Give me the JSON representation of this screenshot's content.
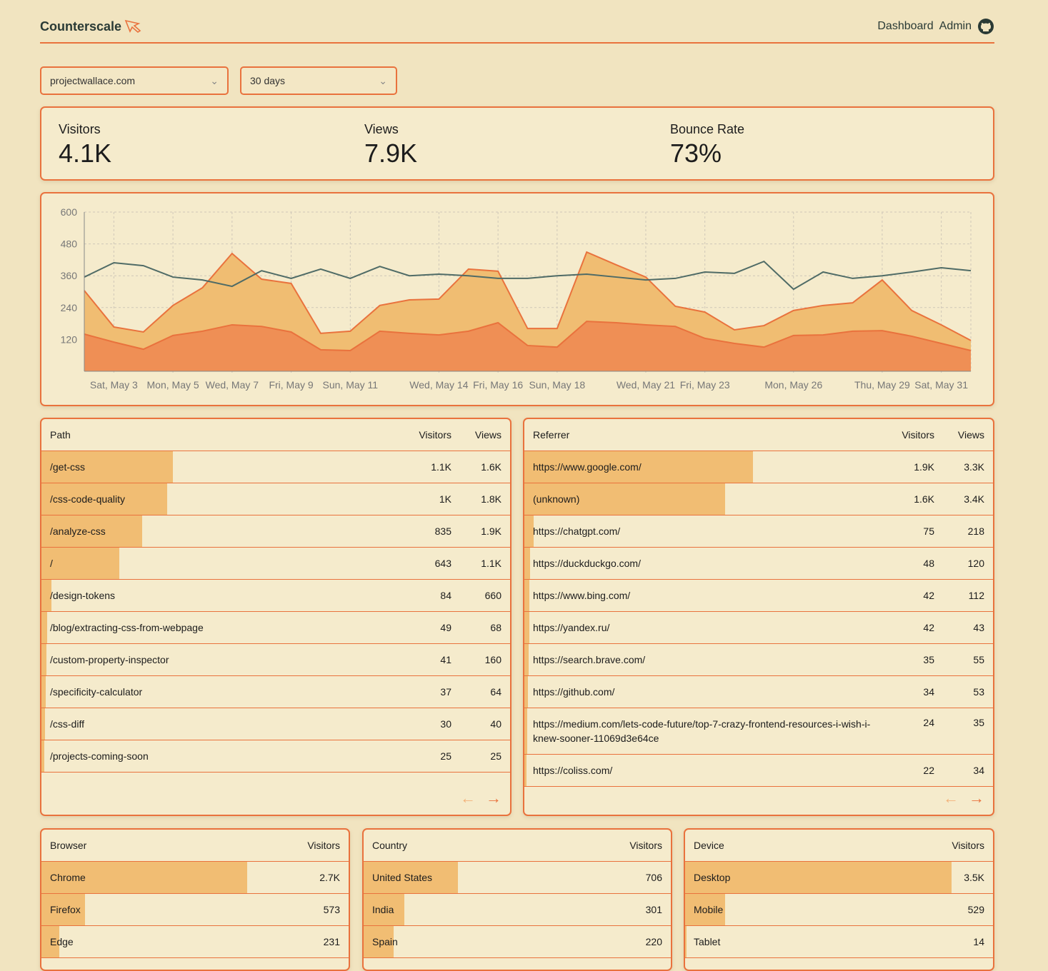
{
  "header": {
    "brand": "Counterscale",
    "nav": [
      "Dashboard",
      "Admin"
    ]
  },
  "filters": {
    "site": "projectwallace.com",
    "range": "30 days"
  },
  "stats": [
    {
      "label": "Visitors",
      "value": "4.1K"
    },
    {
      "label": "Views",
      "value": "7.9K"
    },
    {
      "label": "Bounce Rate",
      "value": "73%"
    }
  ],
  "colors": {
    "accent": "#e9723d",
    "bar": "#f1bd73",
    "views_fill": "#f0bd72",
    "visitors_fill": "#ef8f55",
    "line": "#4f6b66"
  },
  "chart_data": {
    "type": "area",
    "ylim": [
      0,
      600
    ],
    "yticks": [
      120,
      240,
      360,
      480,
      600
    ],
    "x": [
      "May 2",
      "May 3",
      "May 4",
      "May 5",
      "May 6",
      "May 7",
      "May 8",
      "May 9",
      "May 10",
      "May 11",
      "May 12",
      "May 13",
      "May 14",
      "May 15",
      "May 16",
      "May 17",
      "May 18",
      "May 19",
      "May 20",
      "May 21",
      "May 22",
      "May 23",
      "May 24",
      "May 25",
      "May 26",
      "May 27",
      "May 28",
      "May 29",
      "May 30",
      "May 31",
      "Jun 1"
    ],
    "xtick_labels": [
      {
        "i": 1,
        "label": "Sat, May 3"
      },
      {
        "i": 3,
        "label": "Mon, May 5"
      },
      {
        "i": 5,
        "label": "Wed, May 7"
      },
      {
        "i": 7,
        "label": "Fri, May 9"
      },
      {
        "i": 9,
        "label": "Sun, May 11"
      },
      {
        "i": 12,
        "label": "Wed, May 14"
      },
      {
        "i": 14,
        "label": "Fri, May 16"
      },
      {
        "i": 16,
        "label": "Sun, May 18"
      },
      {
        "i": 19,
        "label": "Wed, May 21"
      },
      {
        "i": 21,
        "label": "Fri, May 23"
      },
      {
        "i": 24,
        "label": "Mon, May 26"
      },
      {
        "i": 27,
        "label": "Thu, May 29"
      },
      {
        "i": 29,
        "label": "Sat, May 31"
      }
    ],
    "series": [
      {
        "key": "views",
        "values": [
          304,
          167,
          148,
          248,
          315,
          444,
          347,
          331,
          143,
          151,
          248,
          269,
          272,
          385,
          377,
          161,
          161,
          449,
          401,
          355,
          245,
          223,
          156,
          172,
          229,
          248,
          258,
          344,
          229,
          175,
          116
        ]
      },
      {
        "key": "visitors",
        "values": [
          140,
          110,
          83,
          135,
          151,
          175,
          169,
          148,
          81,
          78,
          151,
          143,
          137,
          151,
          183,
          97,
          91,
          188,
          183,
          175,
          169,
          124,
          105,
          91,
          135,
          137,
          151,
          153,
          132,
          105,
          78
        ]
      },
      {
        "key": "line",
        "values": [
          355,
          409,
          398,
          355,
          344,
          320,
          379,
          350,
          385,
          350,
          395,
          360,
          366,
          360,
          350,
          350,
          360,
          366,
          355,
          344,
          350,
          374,
          369,
          414,
          309,
          374,
          350,
          360,
          374,
          390,
          379
        ]
      }
    ]
  },
  "paths": {
    "headers": [
      "Path",
      "Visitors",
      "Views"
    ],
    "rows": [
      [
        "/get-css",
        "1.1K",
        "1.6K",
        0.28
      ],
      [
        "/css-code-quality",
        "1K",
        "1.8K",
        0.268
      ],
      [
        "/analyze-css",
        "835",
        "1.9K",
        0.215
      ],
      [
        "/",
        "643",
        "1.1K",
        0.166
      ],
      [
        "/design-tokens",
        "84",
        "660",
        0.021
      ],
      [
        "/blog/extracting-css-from-webpage",
        "49",
        "68",
        0.012
      ],
      [
        "/custom-property-inspector",
        "41",
        "160",
        0.01
      ],
      [
        "/specificity-calculator",
        "37",
        "64",
        0.009
      ],
      [
        "/css-diff",
        "30",
        "40",
        0.007
      ],
      [
        "/projects-coming-soon",
        "25",
        "25",
        0.006
      ]
    ]
  },
  "referrers": {
    "headers": [
      "Referrer",
      "Visitors",
      "Views"
    ],
    "rows": [
      [
        "https://www.google.com/",
        "1.9K",
        "3.3K",
        0.488
      ],
      [
        "(unknown)",
        "1.6K",
        "3.4K",
        0.428
      ],
      [
        "https://chatgpt.com/",
        "75",
        "218",
        0.02
      ],
      [
        "https://duckduckgo.com/",
        "48",
        "120",
        0.012
      ],
      [
        "https://www.bing.com/",
        "42",
        "112",
        0.011
      ],
      [
        "https://yandex.ru/",
        "42",
        "43",
        0.011
      ],
      [
        "https://search.brave.com/",
        "35",
        "55",
        0.009
      ],
      [
        "https://github.com/",
        "34",
        "53",
        0.008
      ],
      [
        "https://medium.com/lets-code-future/top-7-crazy-frontend-resources-i-wish-i-knew-sooner-11069d3e64ce",
        "24",
        "35",
        0.006
      ],
      [
        "https://coliss.com/",
        "22",
        "34",
        0.005
      ]
    ]
  },
  "browsers": {
    "headers": [
      "Browser",
      "Visitors"
    ],
    "rows": [
      [
        "Chrome",
        "2.7K",
        0.67
      ],
      [
        "Firefox",
        "573",
        0.142
      ],
      [
        "Edge",
        "231",
        0.057
      ]
    ]
  },
  "countries": {
    "headers": [
      "Country",
      "Visitors"
    ],
    "rows": [
      [
        "United States",
        "706",
        0.308
      ],
      [
        "India",
        "301",
        0.132
      ],
      [
        "Spain",
        "220",
        0.097
      ]
    ]
  },
  "devices": {
    "headers": [
      "Device",
      "Visitors"
    ],
    "rows": [
      [
        "Desktop",
        "3.5K",
        0.866
      ],
      [
        "Mobile",
        "529",
        0.13
      ],
      [
        "Tablet",
        "14",
        0.004
      ]
    ]
  },
  "pager": {
    "prev": "←",
    "next": "→"
  }
}
